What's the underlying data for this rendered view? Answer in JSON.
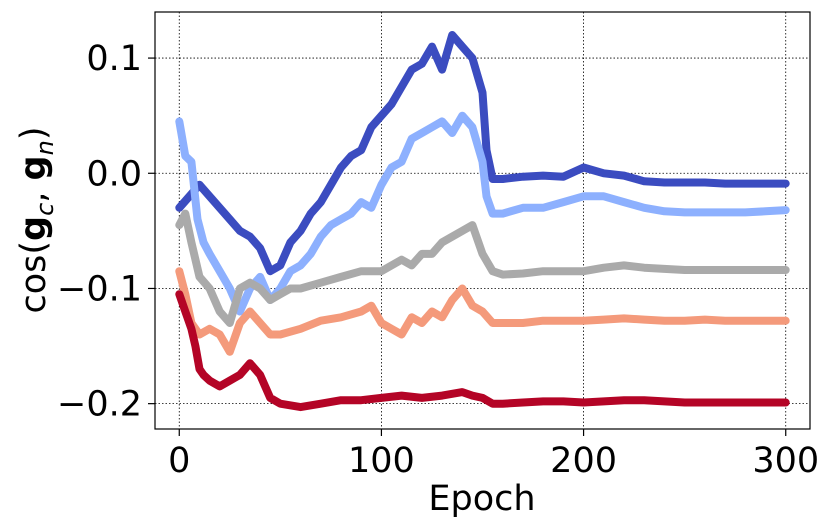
{
  "chart_data": {
    "type": "line",
    "xlabel": "Epoch",
    "ylabel_parts": {
      "prefix": "cos(",
      "g1": "g",
      "sub1": "c",
      "sep": ", ",
      "g2": "g",
      "sub2": "n",
      "suffix": ")"
    },
    "xlim": [
      -12,
      312
    ],
    "ylim": [
      -0.222,
      0.14
    ],
    "x_ticks": [
      0,
      100,
      200,
      300
    ],
    "x_tick_labels": [
      "0",
      "100",
      "200",
      "300"
    ],
    "y_ticks": [
      -0.2,
      -0.1,
      0.0,
      0.1
    ],
    "y_tick_labels": [
      "−0.2",
      "−0.1",
      "0.0",
      "0.1"
    ],
    "grid": true,
    "series": [
      {
        "color": "#3b4cc0",
        "x": [
          0,
          5,
          10,
          15,
          20,
          25,
          30,
          35,
          40,
          45,
          50,
          55,
          60,
          65,
          70,
          75,
          80,
          85,
          90,
          95,
          100,
          105,
          110,
          115,
          120,
          125,
          130,
          135,
          140,
          145,
          150,
          152,
          155,
          160,
          170,
          180,
          190,
          200,
          210,
          220,
          230,
          240,
          250,
          260,
          270,
          280,
          290,
          300
        ],
        "y": [
          -0.03,
          -0.02,
          -0.01,
          -0.02,
          -0.03,
          -0.04,
          -0.05,
          -0.055,
          -0.065,
          -0.085,
          -0.08,
          -0.06,
          -0.05,
          -0.035,
          -0.025,
          -0.01,
          0.005,
          0.015,
          0.02,
          0.04,
          0.05,
          0.06,
          0.075,
          0.09,
          0.095,
          0.11,
          0.09,
          0.12,
          0.11,
          0.1,
          0.07,
          0.02,
          -0.005,
          -0.005,
          -0.003,
          -0.002,
          -0.003,
          0.005,
          0.0,
          -0.002,
          -0.007,
          -0.008,
          -0.008,
          -0.008,
          -0.009,
          -0.009,
          -0.009,
          -0.009
        ]
      },
      {
        "color": "#8db0fe",
        "x": [
          0,
          3,
          6,
          9,
          12,
          15,
          20,
          25,
          30,
          35,
          40,
          45,
          50,
          55,
          60,
          65,
          70,
          75,
          80,
          85,
          90,
          95,
          100,
          105,
          110,
          115,
          120,
          125,
          130,
          135,
          140,
          145,
          150,
          152,
          155,
          160,
          170,
          180,
          190,
          200,
          210,
          220,
          230,
          240,
          250,
          260,
          270,
          280,
          290,
          300
        ],
        "y": [
          0.045,
          0.015,
          0.01,
          -0.04,
          -0.06,
          -0.07,
          -0.085,
          -0.1,
          -0.12,
          -0.1,
          -0.09,
          -0.11,
          -0.1,
          -0.085,
          -0.08,
          -0.07,
          -0.055,
          -0.045,
          -0.04,
          -0.035,
          -0.025,
          -0.03,
          -0.01,
          0.005,
          0.01,
          0.03,
          0.035,
          0.04,
          0.045,
          0.035,
          0.05,
          0.04,
          0.01,
          -0.02,
          -0.035,
          -0.035,
          -0.03,
          -0.03,
          -0.025,
          -0.02,
          -0.02,
          -0.025,
          -0.03,
          -0.033,
          -0.034,
          -0.034,
          -0.034,
          -0.034,
          -0.033,
          -0.032
        ]
      },
      {
        "color": "#aaaaaa",
        "x": [
          0,
          3,
          6,
          10,
          15,
          20,
          25,
          30,
          35,
          40,
          45,
          50,
          55,
          60,
          70,
          80,
          90,
          100,
          110,
          115,
          120,
          125,
          130,
          135,
          140,
          145,
          150,
          155,
          160,
          170,
          180,
          190,
          200,
          210,
          220,
          230,
          240,
          250,
          260,
          270,
          280,
          290,
          300
        ],
        "y": [
          -0.045,
          -0.035,
          -0.06,
          -0.09,
          -0.1,
          -0.12,
          -0.13,
          -0.1,
          -0.095,
          -0.1,
          -0.11,
          -0.105,
          -0.1,
          -0.1,
          -0.095,
          -0.09,
          -0.085,
          -0.085,
          -0.075,
          -0.08,
          -0.07,
          -0.07,
          -0.06,
          -0.055,
          -0.05,
          -0.045,
          -0.07,
          -0.085,
          -0.088,
          -0.087,
          -0.085,
          -0.085,
          -0.085,
          -0.082,
          -0.08,
          -0.082,
          -0.083,
          -0.084,
          -0.084,
          -0.084,
          -0.084,
          -0.084,
          -0.084
        ]
      },
      {
        "color": "#f49a7b",
        "x": [
          0,
          3,
          6,
          10,
          15,
          20,
          25,
          30,
          35,
          40,
          45,
          50,
          60,
          70,
          80,
          90,
          95,
          100,
          105,
          110,
          115,
          120,
          125,
          130,
          135,
          140,
          145,
          150,
          155,
          160,
          170,
          180,
          190,
          200,
          210,
          220,
          230,
          240,
          250,
          260,
          270,
          280,
          290,
          300
        ],
        "y": [
          -0.085,
          -0.105,
          -0.13,
          -0.14,
          -0.135,
          -0.14,
          -0.155,
          -0.13,
          -0.12,
          -0.13,
          -0.14,
          -0.14,
          -0.135,
          -0.128,
          -0.125,
          -0.12,
          -0.115,
          -0.13,
          -0.135,
          -0.14,
          -0.125,
          -0.13,
          -0.12,
          -0.125,
          -0.11,
          -0.1,
          -0.115,
          -0.12,
          -0.13,
          -0.13,
          -0.13,
          -0.128,
          -0.128,
          -0.128,
          -0.127,
          -0.126,
          -0.127,
          -0.128,
          -0.128,
          -0.127,
          -0.128,
          -0.128,
          -0.128,
          -0.128
        ]
      },
      {
        "color": "#b40426",
        "x": [
          0,
          3,
          6,
          8,
          10,
          12,
          15,
          20,
          25,
          30,
          35,
          40,
          45,
          50,
          60,
          70,
          80,
          90,
          100,
          110,
          120,
          130,
          140,
          145,
          150,
          155,
          160,
          170,
          180,
          190,
          200,
          210,
          220,
          230,
          240,
          250,
          260,
          270,
          280,
          290,
          300
        ],
        "y": [
          -0.105,
          -0.12,
          -0.135,
          -0.15,
          -0.17,
          -0.175,
          -0.18,
          -0.185,
          -0.18,
          -0.175,
          -0.165,
          -0.175,
          -0.195,
          -0.2,
          -0.203,
          -0.2,
          -0.197,
          -0.197,
          -0.195,
          -0.193,
          -0.195,
          -0.193,
          -0.19,
          -0.193,
          -0.195,
          -0.2,
          -0.2,
          -0.199,
          -0.198,
          -0.198,
          -0.199,
          -0.198,
          -0.197,
          -0.197,
          -0.198,
          -0.199,
          -0.199,
          -0.199,
          -0.199,
          -0.199,
          -0.199
        ]
      }
    ]
  }
}
